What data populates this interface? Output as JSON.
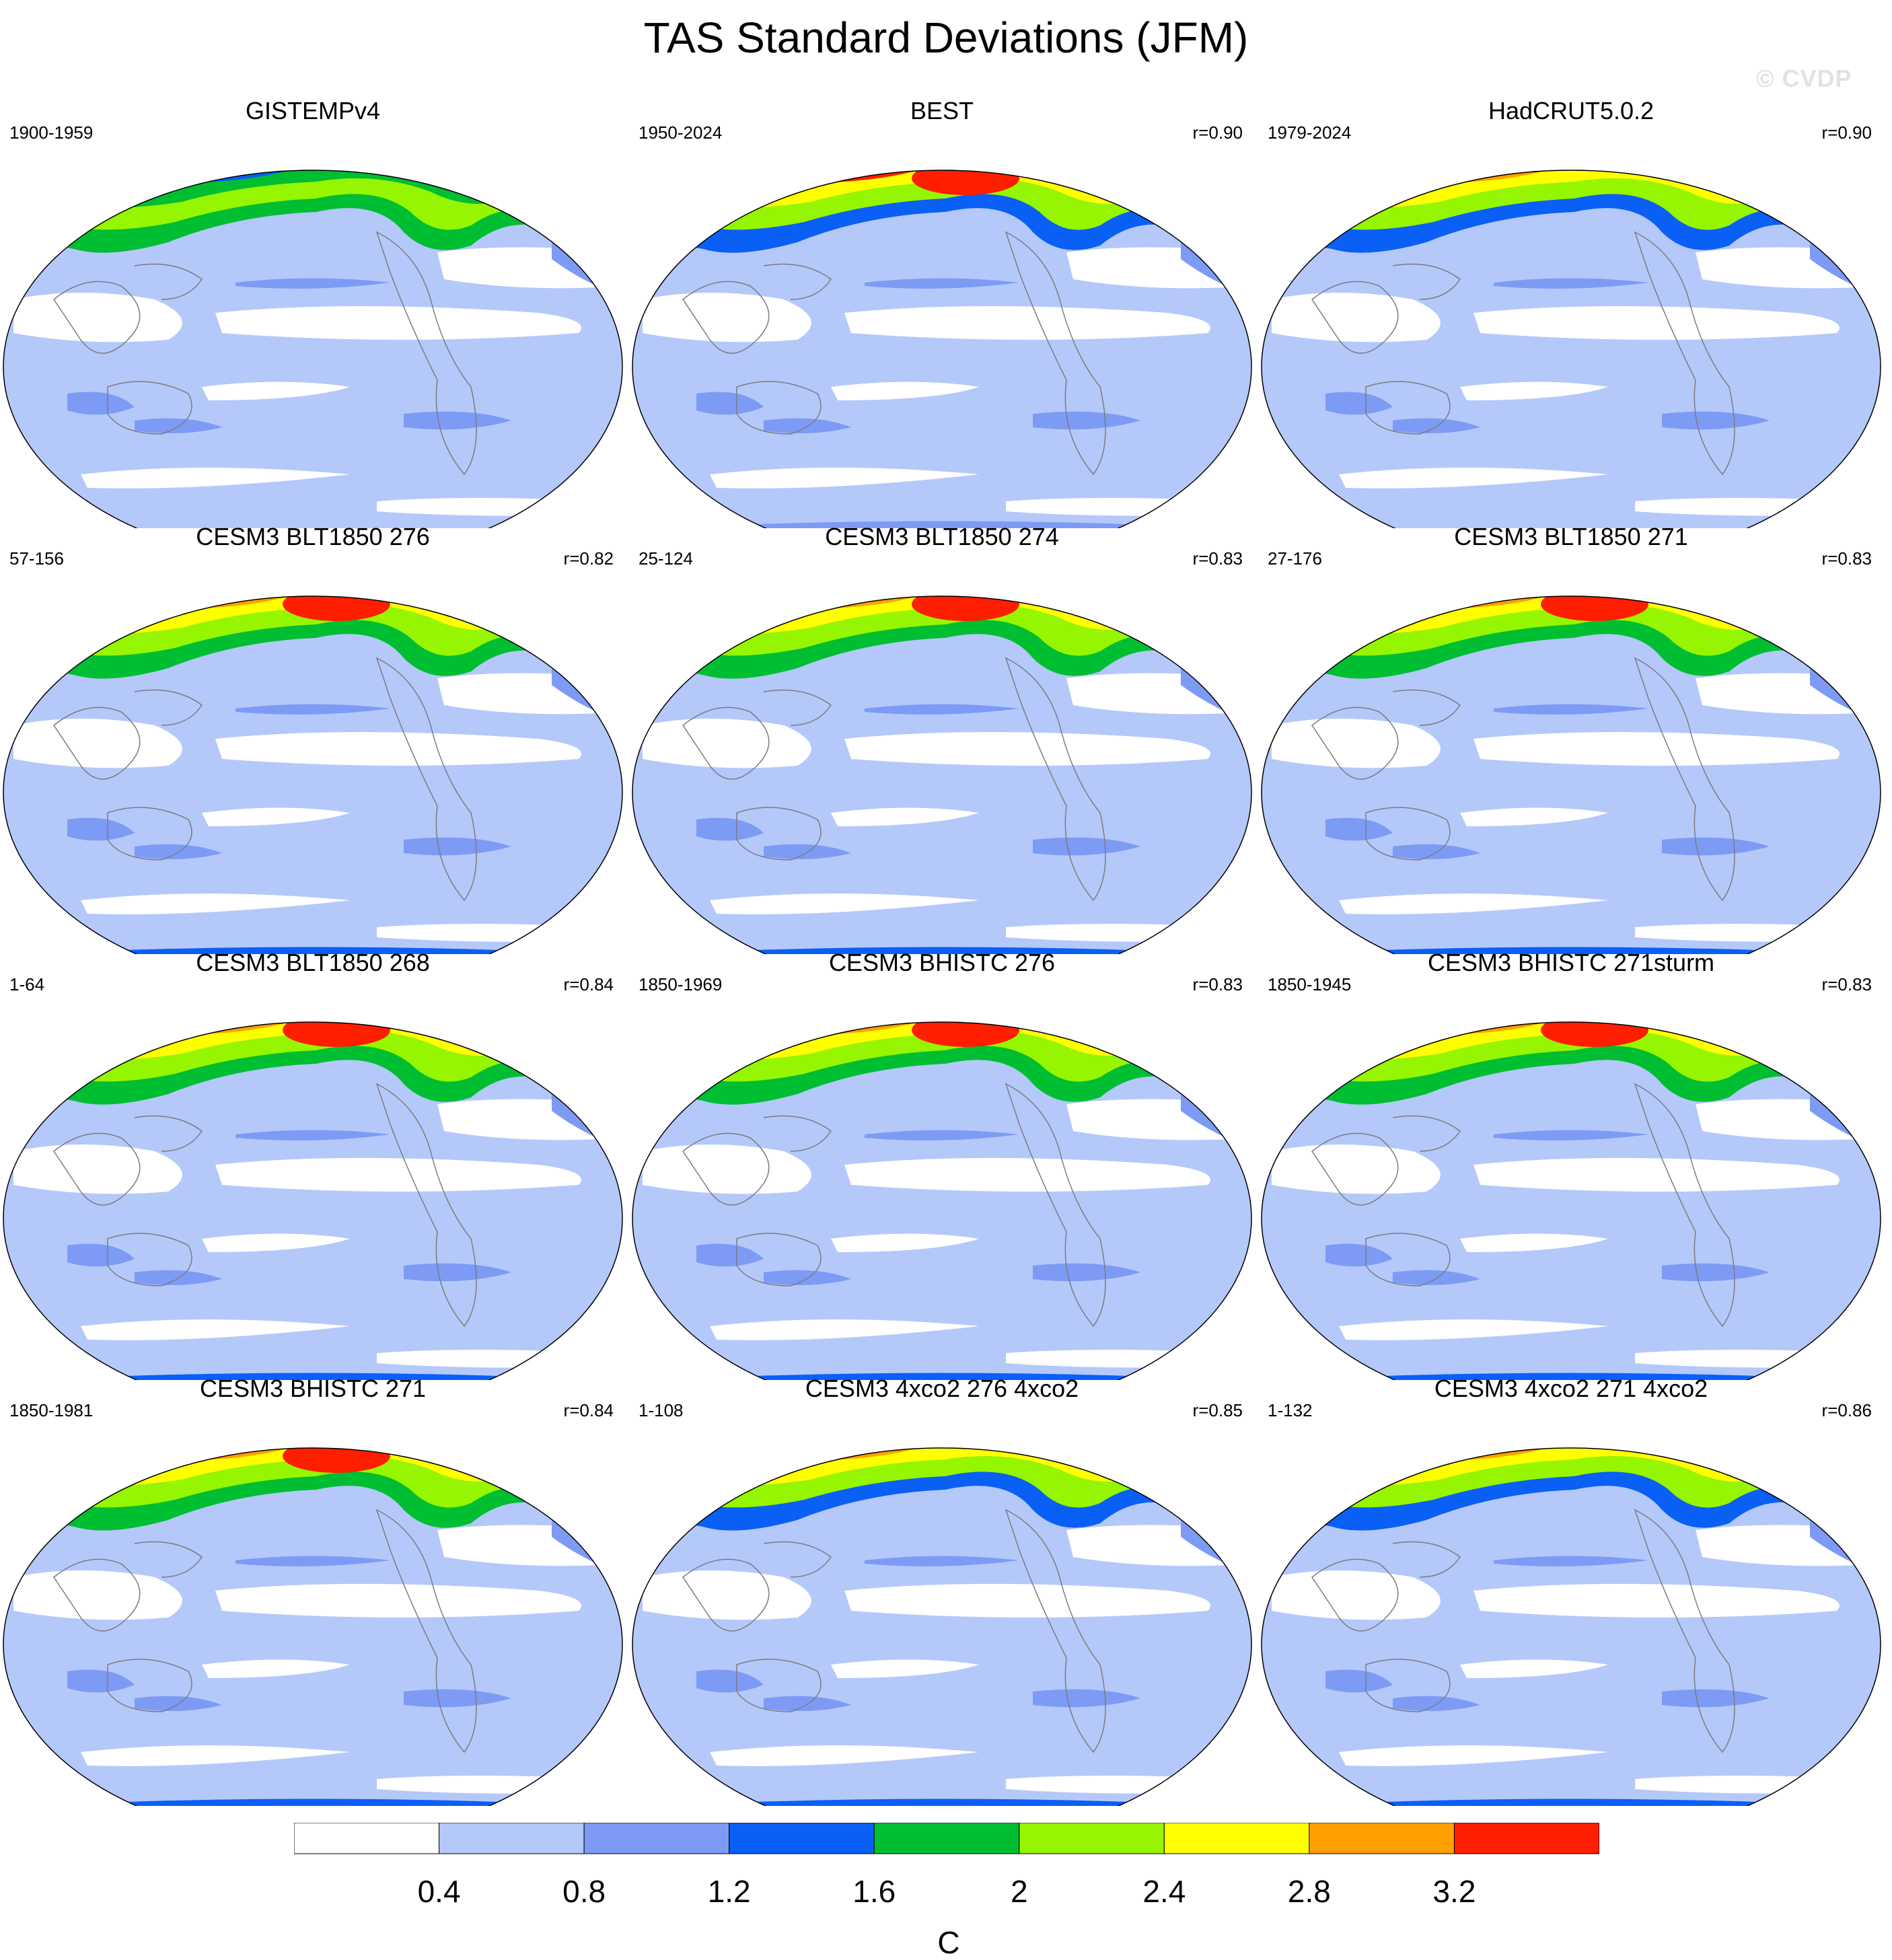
{
  "title": "TAS Standard Deviations (JFM)",
  "watermark": "© CVDP",
  "colors": {
    "levels": [
      "#ffffff",
      "#b4c8fa",
      "#7d9bf5",
      "#0a5ff5",
      "#00be32",
      "#96f500",
      "#ffff00",
      "#ffa000",
      "#ff1e00"
    ],
    "coast": "#7c7c7c",
    "frame": "#000000"
  },
  "colorbar": {
    "ticks": [
      "0.4",
      "0.8",
      "1.2",
      "1.6",
      "2",
      "2.4",
      "2.8",
      "3.2"
    ],
    "unit": "C"
  },
  "panels": [
    {
      "title": "GISTEMPv4",
      "period": "1900-1959",
      "corr": "",
      "variant": 0
    },
    {
      "title": "BEST",
      "period": "1950-2024",
      "corr": "r=0.90",
      "variant": 1
    },
    {
      "title": "HadCRUT5.0.2",
      "period": "1979-2024",
      "corr": "r=0.90",
      "variant": 2
    },
    {
      "title": "CESM3 BLT1850 276",
      "period": "57-156",
      "corr": "r=0.82",
      "variant": 3
    },
    {
      "title": "CESM3 BLT1850 274",
      "period": "25-124",
      "corr": "r=0.83",
      "variant": 3
    },
    {
      "title": "CESM3 BLT1850 271",
      "period": "27-176",
      "corr": "r=0.83",
      "variant": 3
    },
    {
      "title": "CESM3 BLT1850 268",
      "period": "1-64",
      "corr": "r=0.84",
      "variant": 3
    },
    {
      "title": "CESM3 BHISTC 276",
      "period": "1850-1969",
      "corr": "r=0.83",
      "variant": 3
    },
    {
      "title": "CESM3 BHISTC 271sturm",
      "period": "1850-1945",
      "corr": "r=0.83",
      "variant": 3
    },
    {
      "title": "CESM3 BHISTC 271",
      "period": "1850-1981",
      "corr": "r=0.84",
      "variant": 3
    },
    {
      "title": "CESM3 4xco2 276 4xco2",
      "period": "1-108",
      "corr": "r=0.85",
      "variant": 4
    },
    {
      "title": "CESM3 4xco2 271 4xco2",
      "period": "1-132",
      "corr": "r=0.86",
      "variant": 4
    }
  ]
}
